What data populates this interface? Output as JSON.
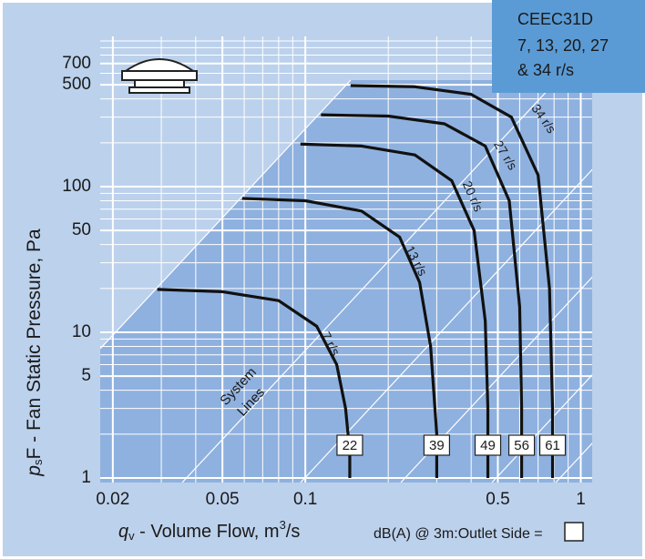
{
  "chart_data": {
    "type": "line",
    "info": [
      "CEEC31D",
      "7, 13, 20, 27",
      "& 34 r/s"
    ],
    "y_label": {
      "symbol": "p",
      "sub": "s",
      "text": "F - Fan Static Pressure, Pa"
    },
    "x_label": {
      "symbol": "q",
      "sub": "v",
      "text": " - Volume Flow, m",
      "sup": "3",
      "unit": "/s"
    },
    "footer": "dB(A) @ 3m:Outlet  Side =",
    "system_lines_label": [
      "System",
      "Lines"
    ],
    "log_x": true,
    "log_y": true,
    "grid": true,
    "xlim": [
      0.018,
      1.1
    ],
    "ylim": [
      1,
      1000
    ],
    "xticks": [
      0.02,
      0.05,
      0.1,
      0.5,
      1
    ],
    "yticks": [
      1,
      5,
      10,
      50,
      100,
      500,
      700
    ],
    "series": [
      {
        "name": "7 r/s",
        "color": "#111111",
        "dba": 22,
        "x": [
          0.029,
          0.05,
          0.08,
          0.11,
          0.13,
          0.14,
          0.145,
          0.145
        ],
        "values": [
          19.7,
          19,
          16.5,
          11,
          6,
          3,
          1.5,
          1
        ]
      },
      {
        "name": "13 r/s",
        "color": "#111111",
        "dba": 39,
        "x": [
          0.059,
          0.1,
          0.16,
          0.22,
          0.26,
          0.285,
          0.3,
          0.3
        ],
        "values": [
          83,
          80,
          68,
          45,
          22,
          8,
          2,
          1
        ]
      },
      {
        "name": "20 r/s",
        "color": "#111111",
        "dba": 49,
        "x": [
          0.096,
          0.16,
          0.25,
          0.34,
          0.41,
          0.45,
          0.46,
          0.46
        ],
        "values": [
          196,
          190,
          165,
          110,
          50,
          12,
          3,
          1
        ]
      },
      {
        "name": "27 r/s",
        "color": "#111111",
        "dba": 56,
        "x": [
          0.114,
          0.2,
          0.32,
          0.45,
          0.55,
          0.6,
          0.61,
          0.61
        ],
        "values": [
          311,
          305,
          270,
          190,
          80,
          15,
          3,
          1
        ]
      },
      {
        "name": "34 r/s",
        "color": "#111111",
        "dba": 61,
        "x": [
          0.146,
          0.25,
          0.4,
          0.56,
          0.7,
          0.77,
          0.79,
          0.79
        ],
        "values": [
          494,
          485,
          430,
          300,
          120,
          20,
          3,
          1
        ]
      }
    ]
  }
}
